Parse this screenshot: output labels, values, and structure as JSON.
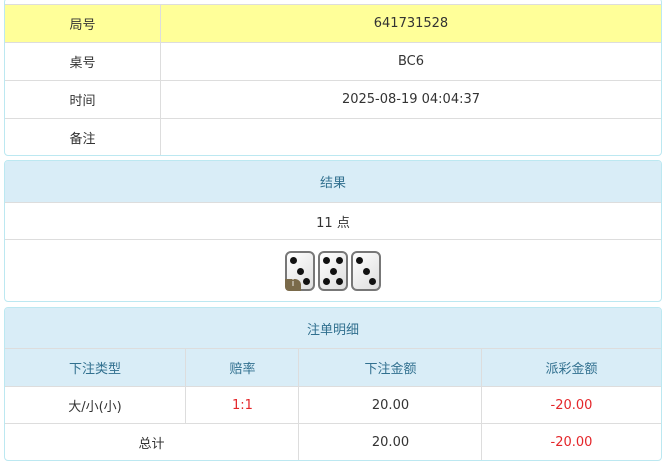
{
  "info": {
    "rows": [
      {
        "label": "局号",
        "value": "641731528"
      },
      {
        "label": "桌号",
        "value": "BC6"
      },
      {
        "label": "时间",
        "value": "2025-08-19 04:04:37"
      },
      {
        "label": "备注",
        "value": ""
      }
    ],
    "highlight_color": "#ffff99"
  },
  "result": {
    "title": "结果",
    "points": "11 点",
    "dice": [
      3,
      5,
      3
    ],
    "info_badge": "i"
  },
  "bets": {
    "title": "注单明细",
    "columns": [
      "下注类型",
      "赔率",
      "下注金额",
      "派彩金额"
    ],
    "rows": [
      {
        "type": "大/小(小)",
        "odds": "1:1",
        "amount": "20.00",
        "payout": "-20.00"
      }
    ],
    "total": {
      "label": "总计",
      "amount": "20.00",
      "payout": "-20.00"
    }
  }
}
